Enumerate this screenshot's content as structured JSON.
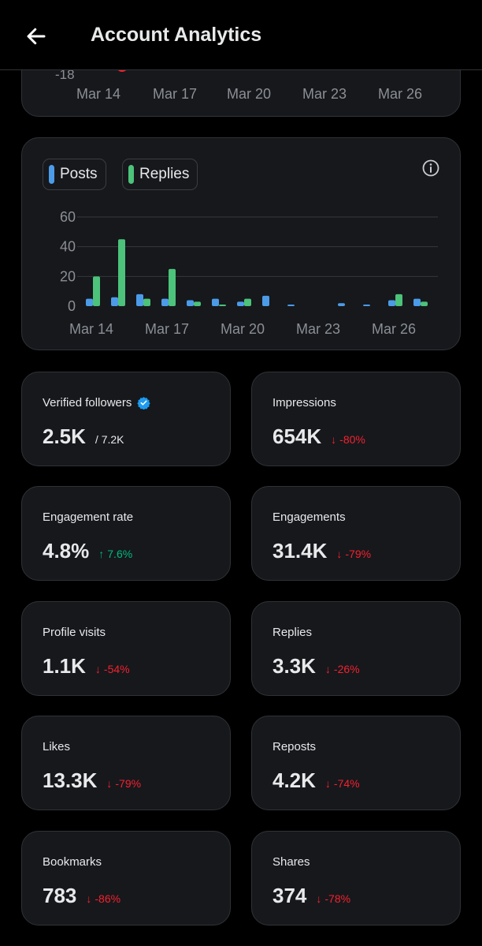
{
  "header": {
    "title": "Account Analytics",
    "back_icon": "arrow-left-icon"
  },
  "top_chart": {
    "y_tick_partial": "-18",
    "x_ticks": [
      "Mar 14",
      "Mar 17",
      "Mar 20",
      "Mar 23",
      "Mar 26"
    ],
    "marker_color": "#f4212e"
  },
  "chart_data": {
    "type": "bar",
    "legend": [
      {
        "name": "Posts",
        "color": "#4c9be8"
      },
      {
        "name": "Replies",
        "color": "#4cc27a"
      }
    ],
    "x_ticks": [
      "Mar 14",
      "Mar 17",
      "Mar 20",
      "Mar 23",
      "Mar 26"
    ],
    "y_ticks": [
      "60",
      "40",
      "20",
      "0"
    ],
    "ylim": [
      0,
      60
    ],
    "categories": [
      "Mar 14",
      "Mar 15",
      "Mar 16",
      "Mar 17",
      "Mar 18",
      "Mar 19",
      "Mar 20",
      "Mar 21",
      "Mar 22",
      "Mar 23",
      "Mar 24",
      "Mar 25",
      "Mar 26",
      "Mar 27"
    ],
    "series": [
      {
        "name": "Posts",
        "values": [
          5,
          6,
          8,
          5,
          4,
          5,
          3,
          7,
          1,
          0,
          2,
          1,
          4,
          5
        ]
      },
      {
        "name": "Replies",
        "values": [
          20,
          45,
          5,
          25,
          3,
          1,
          5,
          0,
          0,
          0,
          0,
          0,
          8,
          3
        ]
      }
    ]
  },
  "metrics": [
    {
      "label": "Verified followers",
      "value": "2.5K",
      "sub": "/ 7.2K",
      "verified": true
    },
    {
      "label": "Impressions",
      "value": "654K",
      "delta": "-80%",
      "dir": "down"
    },
    {
      "label": "Engagement rate",
      "value": "4.8%",
      "delta": "7.6%",
      "dir": "up"
    },
    {
      "label": "Engagements",
      "value": "31.4K",
      "delta": "-79%",
      "dir": "down"
    },
    {
      "label": "Profile visits",
      "value": "1.1K",
      "delta": "-54%",
      "dir": "down"
    },
    {
      "label": "Replies",
      "value": "3.3K",
      "delta": "-26%",
      "dir": "down"
    },
    {
      "label": "Likes",
      "value": "13.3K",
      "delta": "-79%",
      "dir": "down"
    },
    {
      "label": "Reposts",
      "value": "4.2K",
      "delta": "-74%",
      "dir": "down"
    },
    {
      "label": "Bookmarks",
      "value": "783",
      "delta": "-86%",
      "dir": "down"
    },
    {
      "label": "Shares",
      "value": "374",
      "delta": "-78%",
      "dir": "down"
    }
  ]
}
